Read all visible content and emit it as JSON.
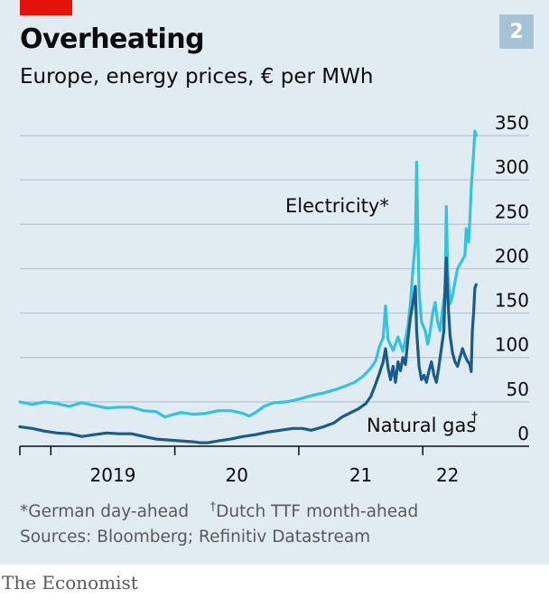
{
  "title": "Overheating",
  "subtitle": "Europe, energy prices, € per MWh",
  "chart_number": "2",
  "footnote_gas_prefix": "*German day-ahead",
  "footnote_dagger": "†",
  "footnote_gas": "Dutch TTF month-ahead",
  "sources": "Sources: Bloomberg; Refinitiv Datastream",
  "brand": "The Economist",
  "colors": {
    "electricity": "#33c3dd",
    "gas": "#1b5b8c",
    "accent": "#e3120b",
    "background": "#e1ebf2"
  },
  "chart_data": {
    "type": "line",
    "title": "Overheating",
    "subtitle": "Europe, energy prices, € per MWh",
    "xlim": [
      2018.75,
      2022.45
    ],
    "ylim": [
      0,
      350
    ],
    "y_ticks": [
      0,
      50,
      100,
      150,
      200,
      250,
      300,
      350
    ],
    "x_tick_labels": [
      {
        "x": 2019.5,
        "label": "2019"
      },
      {
        "x": 2020.5,
        "label": "20"
      },
      {
        "x": 2021.5,
        "label": "21"
      },
      {
        "x": 2022.2,
        "label": "22"
      }
    ],
    "x_tick_marks": [
      2019,
      2020,
      2021,
      2022
    ],
    "grid": true,
    "series": [
      {
        "name": "Electricity*",
        "color": "#33c3dd",
        "points": [
          [
            2018.75,
            50
          ],
          [
            2018.85,
            47
          ],
          [
            2018.95,
            50
          ],
          [
            2019.05,
            48
          ],
          [
            2019.15,
            45
          ],
          [
            2019.25,
            49
          ],
          [
            2019.35,
            46
          ],
          [
            2019.45,
            43
          ],
          [
            2019.55,
            44
          ],
          [
            2019.65,
            44
          ],
          [
            2019.75,
            40
          ],
          [
            2019.85,
            39
          ],
          [
            2019.92,
            33
          ],
          [
            2019.97,
            35
          ],
          [
            2020.05,
            38
          ],
          [
            2020.15,
            36
          ],
          [
            2020.25,
            37
          ],
          [
            2020.35,
            40
          ],
          [
            2020.45,
            40
          ],
          [
            2020.55,
            37
          ],
          [
            2020.6,
            34
          ],
          [
            2020.65,
            38
          ],
          [
            2020.72,
            45
          ],
          [
            2020.8,
            49
          ],
          [
            2020.9,
            50
          ],
          [
            2021.0,
            53
          ],
          [
            2021.1,
            57
          ],
          [
            2021.2,
            60
          ],
          [
            2021.3,
            64
          ],
          [
            2021.38,
            68
          ],
          [
            2021.45,
            72
          ],
          [
            2021.52,
            79
          ],
          [
            2021.58,
            88
          ],
          [
            2021.62,
            96
          ],
          [
            2021.65,
            112
          ],
          [
            2021.68,
            122
          ],
          [
            2021.7,
            158
          ],
          [
            2021.72,
            120
          ],
          [
            2021.76,
            108
          ],
          [
            2021.8,
            123
          ],
          [
            2021.84,
            107
          ],
          [
            2021.86,
            120
          ],
          [
            2021.88,
            135
          ],
          [
            2021.9,
            160
          ],
          [
            2021.92,
            198
          ],
          [
            2021.94,
            230
          ],
          [
            2021.95,
            320
          ],
          [
            2021.96,
            240
          ],
          [
            2021.97,
            175
          ],
          [
            2021.99,
            140
          ],
          [
            2022.02,
            130
          ],
          [
            2022.04,
            115
          ],
          [
            2022.06,
            130
          ],
          [
            2022.08,
            150
          ],
          [
            2022.1,
            162
          ],
          [
            2022.12,
            140
          ],
          [
            2022.14,
            130
          ],
          [
            2022.16,
            155
          ],
          [
            2022.18,
            175
          ],
          [
            2022.19,
            270
          ],
          [
            2022.2,
            200
          ],
          [
            2022.22,
            160
          ],
          [
            2022.24,
            170
          ],
          [
            2022.26,
            185
          ],
          [
            2022.28,
            200
          ],
          [
            2022.3,
            205
          ],
          [
            2022.32,
            210
          ],
          [
            2022.34,
            215
          ],
          [
            2022.35,
            245
          ],
          [
            2022.37,
            230
          ],
          [
            2022.38,
            255
          ],
          [
            2022.39,
            290
          ],
          [
            2022.41,
            330
          ],
          [
            2022.42,
            355
          ],
          [
            2022.43,
            350
          ]
        ]
      },
      {
        "name": "Natural gas",
        "color": "#1b5b8c",
        "points": [
          [
            2018.75,
            22
          ],
          [
            2018.85,
            20
          ],
          [
            2018.95,
            17
          ],
          [
            2019.05,
            15
          ],
          [
            2019.15,
            14
          ],
          [
            2019.25,
            11
          ],
          [
            2019.35,
            13
          ],
          [
            2019.45,
            15
          ],
          [
            2019.55,
            14
          ],
          [
            2019.65,
            14
          ],
          [
            2019.75,
            11
          ],
          [
            2019.85,
            8
          ],
          [
            2019.95,
            7
          ],
          [
            2020.05,
            6
          ],
          [
            2020.15,
            5
          ],
          [
            2020.2,
            4
          ],
          [
            2020.27,
            4
          ],
          [
            2020.35,
            6
          ],
          [
            2020.45,
            8
          ],
          [
            2020.55,
            11
          ],
          [
            2020.65,
            13
          ],
          [
            2020.75,
            16
          ],
          [
            2020.85,
            18
          ],
          [
            2020.95,
            20
          ],
          [
            2021.03,
            20
          ],
          [
            2021.1,
            18
          ],
          [
            2021.2,
            22
          ],
          [
            2021.28,
            26
          ],
          [
            2021.35,
            33
          ],
          [
            2021.42,
            38
          ],
          [
            2021.48,
            42
          ],
          [
            2021.54,
            48
          ],
          [
            2021.58,
            56
          ],
          [
            2021.62,
            70
          ],
          [
            2021.65,
            82
          ],
          [
            2021.68,
            95
          ],
          [
            2021.7,
            110
          ],
          [
            2021.72,
            88
          ],
          [
            2021.74,
            75
          ],
          [
            2021.76,
            90
          ],
          [
            2021.78,
            72
          ],
          [
            2021.8,
            95
          ],
          [
            2021.82,
            85
          ],
          [
            2021.84,
            100
          ],
          [
            2021.86,
            92
          ],
          [
            2021.88,
            120
          ],
          [
            2021.9,
            145
          ],
          [
            2021.92,
            160
          ],
          [
            2021.94,
            180
          ],
          [
            2021.95,
            130
          ],
          [
            2021.97,
            90
          ],
          [
            2021.99,
            75
          ],
          [
            2022.01,
            80
          ],
          [
            2022.03,
            72
          ],
          [
            2022.05,
            85
          ],
          [
            2022.07,
            95
          ],
          [
            2022.09,
            80
          ],
          [
            2022.11,
            72
          ],
          [
            2022.13,
            90
          ],
          [
            2022.15,
            110
          ],
          [
            2022.17,
            130
          ],
          [
            2022.18,
            180
          ],
          [
            2022.19,
            212
          ],
          [
            2022.2,
            170
          ],
          [
            2022.22,
            125
          ],
          [
            2022.24,
            105
          ],
          [
            2022.26,
            95
          ],
          [
            2022.28,
            90
          ],
          [
            2022.3,
            100
          ],
          [
            2022.32,
            110
          ],
          [
            2022.34,
            102
          ],
          [
            2022.36,
            96
          ],
          [
            2022.38,
            92
          ],
          [
            2022.39,
            84
          ],
          [
            2022.4,
            130
          ],
          [
            2022.41,
            150
          ],
          [
            2022.42,
            178
          ],
          [
            2022.43,
            182
          ]
        ]
      }
    ],
    "labels": {
      "electricity": "Electricity*",
      "gas": "Natural gas",
      "gas_dagger": "†"
    }
  }
}
